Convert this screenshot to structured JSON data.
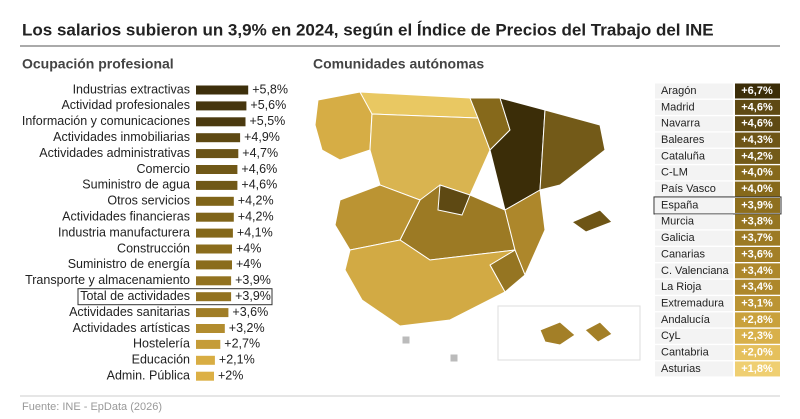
{
  "title": "Los salarios subieron un 3,9% en 2024, según el Índice de Precios del Trabajo del INE",
  "source": "Fuente: INE - EpData (2026)",
  "chart_data": {
    "type": "bar",
    "orientation": "horizontal",
    "title": "Ocupación profesional",
    "categories": [
      "Industrias extractivas",
      "Actividad profesionales",
      "Información y comunicaciones",
      "Actividades inmobiliarias",
      "Actividades administrativas",
      "Comercio",
      "Suministro de agua",
      "Otros servicios",
      "Actividades financieras",
      "Industria manufacturera",
      "Construcción",
      "Suministro de energía",
      "Transporte y almacenamiento",
      "Total de actividades",
      "Actividades sanitarias",
      "Actividades artísticas",
      "Hostelería",
      "Educación",
      "Admin. Pública"
    ],
    "values": [
      5.8,
      5.6,
      5.5,
      4.9,
      4.7,
      4.6,
      4.6,
      4.2,
      4.2,
      4.1,
      4,
      4,
      3.9,
      3.9,
      3.6,
      3.2,
      2.7,
      2.1,
      2
    ],
    "value_labels": [
      "+5,8%",
      "+5,6%",
      "+5,5%",
      "+4,9%",
      "+4,7%",
      "+4,6%",
      "+4,6%",
      "+4,2%",
      "+4,2%",
      "+4,1%",
      "+4%",
      "+4%",
      "+3,9%",
      "+3,9%",
      "+3,6%",
      "+3,2%",
      "+2,7%",
      "+2,1%",
      "+2%"
    ],
    "colors": [
      "#3d2f0b",
      "#46360e",
      "#4b3a0f",
      "#5e4913",
      "#6a5316",
      "#705817",
      "#705817",
      "#7f6419",
      "#7f6419",
      "#84681a",
      "#8a6c1c",
      "#8a6c1c",
      "#927220",
      "#927220",
      "#a07d26",
      "#b28c2e",
      "#c59c38",
      "#d8ad43",
      "#dcb046"
    ],
    "xlim": [
      0,
      6
    ],
    "highlight": 13
  },
  "regions": {
    "title": "Comunidades autónomas",
    "rows": [
      "Aragón",
      "Madrid",
      "Navarra",
      "Baleares",
      "Cataluña",
      "C-LM",
      "País Vasco",
      "España",
      "Murcia",
      "Galicia",
      "Canarias",
      "C. Valenciana",
      "La Rioja",
      "Extremadura",
      "Andalucía",
      "CyL",
      "Cantabria",
      "Asturias"
    ],
    "value_labels": [
      "+6,7%",
      "+4,6%",
      "+4,6%",
      "+4,3%",
      "+4,2%",
      "+4,0%",
      "+4,0%",
      "+3,9%",
      "+3,8%",
      "+3,7%",
      "+3,6%",
      "+3,4%",
      "+3,4%",
      "+3,1%",
      "+2,8%",
      "+2,3%",
      "+2,0%",
      "+1,8%"
    ],
    "colors": [
      "#3b2d08",
      "#5e4913",
      "#5e4913",
      "#6e5516",
      "#735a18",
      "#86691b",
      "#86691b",
      "#8e6f1e",
      "#957522",
      "#9c7a24",
      "#a37f27",
      "#ad872b",
      "#ad872b",
      "#bb9433",
      "#c9a13c",
      "#d8b04a",
      "#e5c05c",
      "#efcf72"
    ],
    "highlight": 7
  }
}
